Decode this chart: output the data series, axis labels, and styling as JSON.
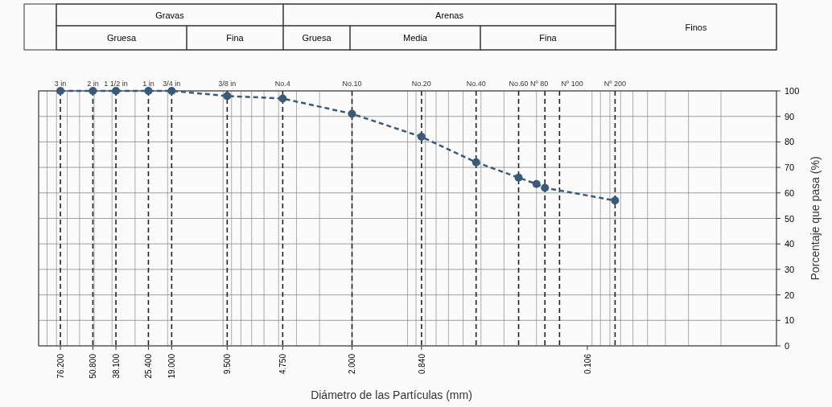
{
  "chart_data": {
    "type": "line",
    "xlabel": "Diámetro de las Partículas (mm)",
    "ylabel": "Porcentaje que pasa (%)",
    "annotations": [
      "Gravas",
      "Gruesa",
      "Fina",
      "Arenas",
      "Gruesa",
      "Media",
      "Fina",
      "Finos"
    ],
    "log": "x",
    "xlim": [
      100,
      0.01
    ],
    "xticks": [
      {
        "value": 76.2,
        "label": "76.200"
      },
      {
        "value": 50.8,
        "label": "50.800"
      },
      {
        "value": 38.1,
        "label": "38.100"
      },
      {
        "value": 25.4,
        "label": "25.400"
      },
      {
        "value": 19,
        "label": "19.000"
      },
      {
        "value": 9.5,
        "label": "9.500"
      },
      {
        "value": 4.75,
        "label": "4.750"
      },
      {
        "value": 2,
        "label": "2.000"
      },
      {
        "value": 0.84,
        "label": "0.840"
      },
      {
        "value": 0.106,
        "label": "0.106"
      }
    ],
    "ylim": [
      0,
      100
    ],
    "yticks": [
      0,
      10,
      20,
      30,
      40,
      50,
      60,
      70,
      80,
      90,
      100
    ],
    "grid": true,
    "marker": "circle",
    "line_style": "dashed",
    "series": [
      {
        "color": "#3b5a78",
        "x": [
          76.2,
          50.8,
          38.1,
          25.4,
          19,
          9.5,
          4.75,
          2,
          0.84,
          0.425,
          0.25,
          0.2,
          0.18,
          0.075
        ],
        "values": [
          100,
          100,
          100,
          100,
          100,
          98,
          97,
          91,
          82,
          72,
          66,
          63.5,
          62,
          57
        ]
      }
    ],
    "ref_lines": [
      {
        "axis": "x",
        "value": 76.2,
        "label": "3 in",
        "color": "#222222",
        "line_style": "dashed"
      },
      {
        "axis": "x",
        "value": 50.8,
        "label": "2 in",
        "color": "#222222",
        "line_style": "dashed"
      },
      {
        "axis": "x",
        "value": 38.1,
        "label": "1 1/2 in",
        "color": "#222222",
        "line_style": "dashed"
      },
      {
        "axis": "x",
        "value": 25.4,
        "label": "1 in",
        "color": "#222222",
        "line_style": "dashed"
      },
      {
        "axis": "x",
        "value": 19,
        "label": "3/4 in",
        "color": "#222222",
        "line_style": "dashed"
      },
      {
        "axis": "x",
        "value": 9.5,
        "label": "3/8 in",
        "color": "#222222",
        "line_style": "dashed"
      },
      {
        "axis": "x",
        "value": 4.75,
        "label": "No.4",
        "color": "#222222",
        "line_style": "dashed"
      },
      {
        "axis": "x",
        "value": 2,
        "label": "No.10",
        "color": "#222222",
        "line_style": "dashed"
      },
      {
        "axis": "x",
        "value": 0.84,
        "label": "No.20",
        "color": "#222222",
        "line_style": "dashed"
      },
      {
        "axis": "x",
        "value": 0.425,
        "label": "No.40",
        "color": "#222222",
        "line_style": "dashed"
      },
      {
        "axis": "x",
        "value": 0.25,
        "label": "No.60",
        "color": "#222222",
        "line_style": "dashed"
      },
      {
        "axis": "x",
        "value": 0.18,
        "label": "Nº 80",
        "color": "#222222",
        "line_style": "dashed"
      },
      {
        "axis": "x",
        "value": 0.15,
        "label": "Nº 100",
        "color": "#222222",
        "line_style": "dashed"
      },
      {
        "axis": "x",
        "value": 0.075,
        "label": "Nº 200",
        "color": "#222222",
        "line_style": "dashed"
      }
    ]
  }
}
